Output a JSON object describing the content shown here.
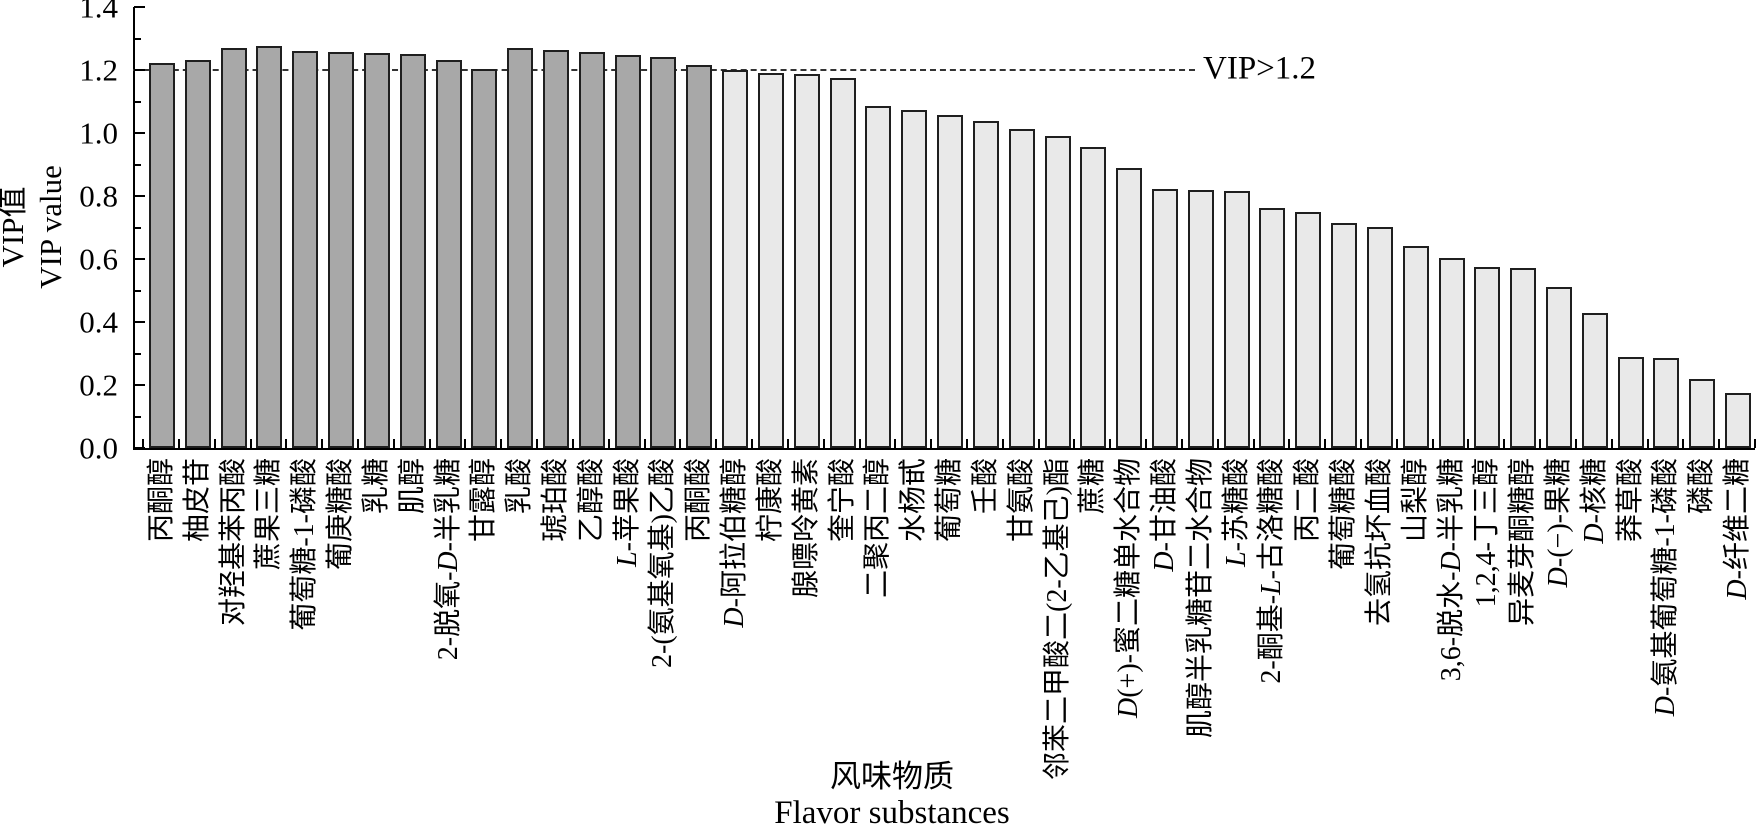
{
  "y_axis": {
    "label_cn": "VIP值",
    "label_en": "VIP value",
    "tick_labels": [
      "0.0",
      "0.2",
      "0.4",
      "0.6",
      "0.8",
      "1.0",
      "1.2",
      "1.4"
    ],
    "min": 0,
    "max": 1.4,
    "major_step": 0.2,
    "minor_step": 0.1
  },
  "x_axis": {
    "title_cn": "风味物质",
    "title_en": "Flavor substances"
  },
  "threshold": {
    "value": 1.2,
    "label": "VIP>1.2"
  },
  "colors": {
    "bar_above": "#a8a8a8",
    "bar_below": "#e9e9e9",
    "bar_outline": "#1f1f1f",
    "axis": "#000000",
    "threshold_line": "#333333",
    "text": "#000000",
    "background": "#ffffff"
  },
  "chart_data": {
    "type": "bar",
    "title": "",
    "xlabel": "风味物质 (Flavor substances)",
    "ylabel": "VIP值 (VIP value)",
    "ylim": [
      0,
      1.4
    ],
    "grid": false,
    "legend": false,
    "threshold_line": {
      "y": 1.2,
      "style": "dashed",
      "label": "VIP>1.2"
    },
    "highlighted_first_n": 16,
    "categories": [
      "丙酮醇",
      "柚皮苷",
      "对羟基苯丙酸",
      "蔗果三糖",
      "葡萄糖-1-磷酸",
      "葡庚糖酸",
      "乳糖",
      "肌醇",
      "2-脱氧-D-半乳糖",
      "甘露醇",
      "乳酸",
      "琥珀酸",
      "乙醇酸",
      "L-苹果酸",
      "2-(氨基氧基)乙酸",
      "丙酮酸",
      "D-阿拉伯糖醇",
      "柠康酸",
      "腺嘌呤黄素",
      "奎宁酸",
      "二聚丙二醇",
      "水杨甙",
      "葡萄糖",
      "壬酸",
      "甘氨酸",
      "邻苯二甲酸二(2-乙基己)酯",
      "蔗糖",
      "D(+)-蜜二糖单水合物",
      "D-甘油酸",
      "肌醇半乳糖苷二水合物",
      "L-苏糖酸",
      "2-酮基-L-古洛糖酸",
      "丙二酸",
      "葡萄糖酸",
      "去氢抗坏血酸",
      "山梨醇",
      "3,6-脱水-D-半乳糖",
      "1,2,4-丁三醇",
      "异麦芽酮糖醇",
      "D-(−)-果糖",
      "D-核糖",
      "莽草酸",
      "D-氨基葡萄糖-1-磷酸",
      "磷酸",
      "D-纤维二糖"
    ],
    "values": [
      1.221,
      1.232,
      1.27,
      1.276,
      1.26,
      1.257,
      1.253,
      1.25,
      1.232,
      1.203,
      1.27,
      1.264,
      1.257,
      1.249,
      1.241,
      1.216,
      1.2,
      1.19,
      1.188,
      1.175,
      1.086,
      1.073,
      1.057,
      1.038,
      1.012,
      0.99,
      0.956,
      0.889,
      0.822,
      0.819,
      0.816,
      0.762,
      0.749,
      0.714,
      0.702,
      0.641,
      0.603,
      0.575,
      0.571,
      0.511,
      0.429,
      0.289,
      0.286,
      0.219,
      0.175
    ]
  }
}
